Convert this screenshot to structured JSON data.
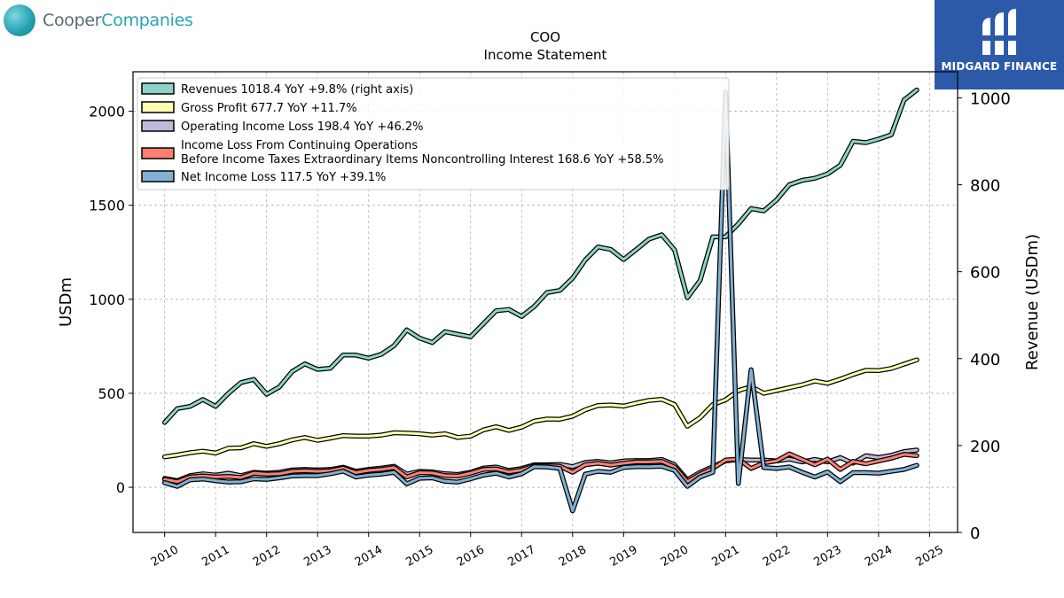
{
  "header": {
    "company_logo_text_a": "Cooper",
    "company_logo_text_b": "Companies",
    "brand_logo_text": "MIDGARD FINANCE"
  },
  "chart_data": {
    "type": "line",
    "title": "COO",
    "subtitle": "Income Statement",
    "ylabel": "USDm",
    "ylabel_right": "Revenue (USDm)",
    "ylim": [
      -240,
      2210
    ],
    "ylim_right": [
      0,
      1060
    ],
    "yticks": [
      0,
      500,
      1000,
      1500,
      2000
    ],
    "yticks_right": [
      0,
      200,
      400,
      600,
      800,
      1000
    ],
    "xlim": [
      2009.38,
      2025.55
    ],
    "xticks": [
      "2010",
      "2011",
      "2012",
      "2013",
      "2014",
      "2015",
      "2016",
      "2017",
      "2018",
      "2019",
      "2020",
      "2021",
      "2022",
      "2023",
      "2024",
      "2025"
    ],
    "grid": true,
    "legend_position": "top-left",
    "x": [
      2010.0,
      2010.25,
      2010.5,
      2010.75,
      2011.0,
      2011.25,
      2011.5,
      2011.75,
      2012.0,
      2012.25,
      2012.5,
      2012.75,
      2013.0,
      2013.25,
      2013.5,
      2013.75,
      2014.0,
      2014.25,
      2014.5,
      2014.75,
      2015.0,
      2015.25,
      2015.5,
      2015.75,
      2016.0,
      2016.25,
      2016.5,
      2016.75,
      2017.0,
      2017.25,
      2017.5,
      2017.75,
      2018.0,
      2018.25,
      2018.5,
      2018.75,
      2019.0,
      2019.25,
      2019.5,
      2019.75,
      2020.0,
      2020.25,
      2020.5,
      2020.75,
      2021.0,
      2021.25,
      2021.5,
      2021.75,
      2022.0,
      2022.25,
      2022.5,
      2022.75,
      2023.0,
      2023.25,
      2023.5,
      2023.75,
      2024.0,
      2024.25,
      2024.5,
      2024.75
    ],
    "series": [
      {
        "name": "Revenues  1018.4 YoY +9.8% (right axis)",
        "axis": "right",
        "color": "#8dd3c7",
        "values": [
          253,
          285,
          290,
          306,
          290,
          320,
          345,
          352,
          318,
          335,
          370,
          388,
          375,
          378,
          408,
          408,
          401,
          410,
          430,
          466,
          447,
          437,
          462,
          456,
          450,
          480,
          510,
          513,
          497,
          520,
          552,
          557,
          585,
          627,
          657,
          651,
          628,
          651,
          675,
          685,
          650,
          540,
          580,
          680,
          680,
          710,
          745,
          740,
          765,
          800,
          810,
          815,
          825,
          845,
          900,
          897,
          905,
          915,
          995,
          1018
        ]
      },
      {
        "name": "Gross Profit  677.7 YoY +11.7%",
        "axis": "left",
        "color": "#ffffb3",
        "values": [
          162,
          172,
          184,
          192,
          182,
          208,
          210,
          232,
          218,
          232,
          252,
          265,
          250,
          262,
          275,
          272,
          272,
          278,
          290,
          288,
          285,
          278,
          285,
          265,
          272,
          305,
          322,
          303,
          320,
          352,
          363,
          362,
          378,
          412,
          435,
          438,
          432,
          448,
          462,
          468,
          440,
          325,
          370,
          440,
          465,
          515,
          535,
          500,
          515,
          530,
          545,
          565,
          553,
          575,
          600,
          622,
          621,
          632,
          655,
          678
        ]
      },
      {
        "name": "Operating Income Loss  198.4 YoY +46.2%",
        "axis": "left",
        "color": "#bebada",
        "values": [
          48,
          35,
          62,
          72,
          65,
          75,
          62,
          80,
          75,
          80,
          92,
          95,
          92,
          95,
          107,
          85,
          95,
          102,
          112,
          70,
          85,
          82,
          72,
          68,
          80,
          102,
          108,
          90,
          100,
          120,
          120,
          122,
          110,
          132,
          138,
          130,
          140,
          142,
          142,
          148,
          120,
          40,
          80,
          110,
          140,
          148,
          145,
          145,
          140,
          150,
          135,
          148,
          135,
          158,
          128,
          168,
          158,
          170,
          190,
          198
        ]
      },
      {
        "name": "Income Loss From Continuing Operations\nBefore Income Taxes Extraordinary Items Noncontrolling Interest  168.6 YoY +58.5%",
        "axis": "left",
        "color": "#fb8072",
        "values": [
          42,
          30,
          55,
          60,
          55,
          58,
          52,
          75,
          70,
          72,
          85,
          88,
          85,
          88,
          102,
          78,
          90,
          95,
          105,
          55,
          78,
          76,
          62,
          60,
          75,
          95,
          98,
          82,
          92,
          115,
          115,
          112,
          80,
          120,
          128,
          118,
          128,
          135,
          135,
          138,
          108,
          30,
          70,
          100,
          145,
          150,
          100,
          130,
          140,
          178,
          148,
          120,
          150,
          95,
          138,
          125,
          140,
          155,
          175,
          168
        ]
      },
      {
        "name": "Net Income Loss  117.5 YoY +39.1%",
        "axis": "left",
        "color": "#80b1d3",
        "values": [
          25,
          5,
          40,
          44,
          35,
          28,
          30,
          45,
          42,
          50,
          60,
          62,
          62,
          72,
          86,
          55,
          65,
          70,
          80,
          18,
          48,
          50,
          32,
          28,
          45,
          65,
          75,
          55,
          72,
          110,
          108,
          100,
          -125,
          70,
          85,
          80,
          106,
          110,
          110,
          112,
          90,
          5,
          55,
          80,
          2100,
          20,
          625,
          105,
          100,
          108,
          80,
          55,
          82,
          30,
          78,
          78,
          75,
          85,
          95,
          117
        ]
      }
    ]
  }
}
